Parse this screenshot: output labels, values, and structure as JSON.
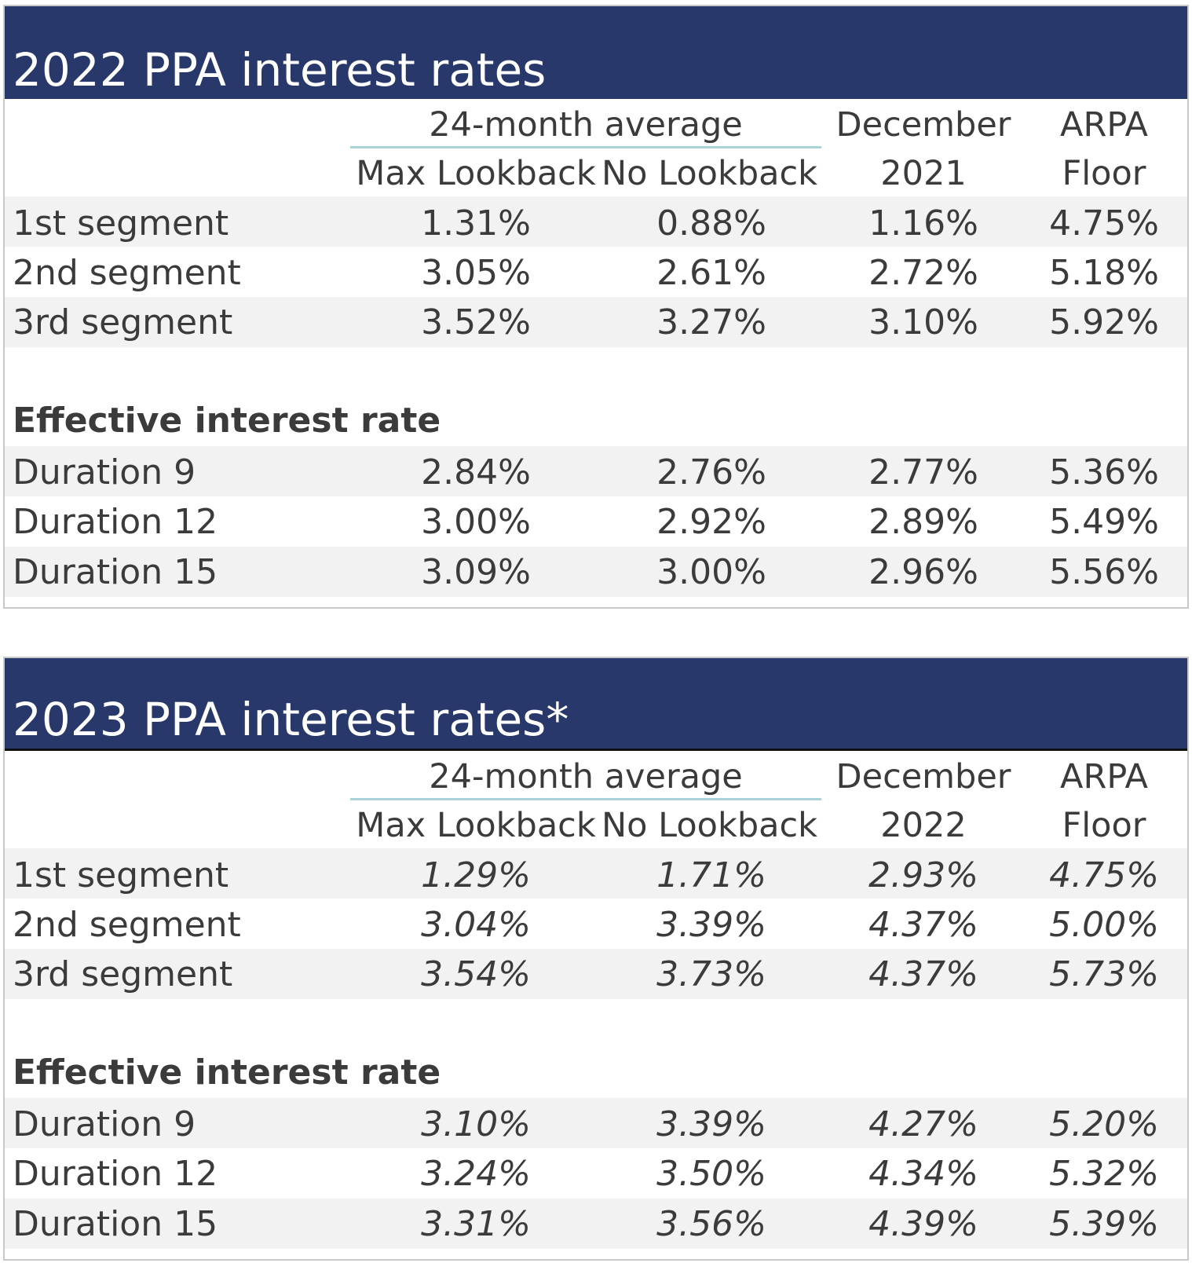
{
  "tables": [
    {
      "title": "2022 PPA interest rates",
      "group_header": "24-month average",
      "col_headers": {
        "max_lookback": "Max Lookback",
        "no_lookback": "No Lookback",
        "december_top": "December",
        "december_year": "2021",
        "arpa_top": "ARPA",
        "arpa_bottom": "Floor"
      },
      "segments": [
        {
          "label": "1st segment",
          "values": [
            "1.31%",
            "0.88%",
            "1.16%",
            "4.75%"
          ]
        },
        {
          "label": "2nd segment",
          "values": [
            "3.05%",
            "2.61%",
            "2.72%",
            "5.18%"
          ]
        },
        {
          "label": "3rd segment",
          "values": [
            "3.52%",
            "3.27%",
            "3.10%",
            "5.92%"
          ]
        }
      ],
      "effective_label": "Effective interest rate",
      "durations": [
        {
          "label": "Duration 9",
          "values": [
            "2.84%",
            "2.76%",
            "2.77%",
            "5.36%"
          ]
        },
        {
          "label": "Duration 12",
          "values": [
            "3.00%",
            "2.92%",
            "2.89%",
            "5.49%"
          ]
        },
        {
          "label": "Duration 15",
          "values": [
            "3.09%",
            "3.00%",
            "2.96%",
            "5.56%"
          ]
        }
      ]
    },
    {
      "title": "2023 PPA interest rates*",
      "group_header": "24-month average",
      "col_headers": {
        "max_lookback": "Max Lookback",
        "no_lookback": "No Lookback",
        "december_top": "December",
        "december_year": "2022",
        "arpa_top": "ARPA",
        "arpa_bottom": "Floor"
      },
      "segments": [
        {
          "label": "1st segment",
          "values": [
            "1.29%",
            "1.71%",
            "2.93%",
            "4.75%"
          ]
        },
        {
          "label": "2nd segment",
          "values": [
            "3.04%",
            "3.39%",
            "4.37%",
            "5.00%"
          ]
        },
        {
          "label": "3rd segment",
          "values": [
            "3.54%",
            "3.73%",
            "4.37%",
            "5.73%"
          ]
        }
      ],
      "effective_label": "Effective interest rate",
      "durations": [
        {
          "label": "Duration 9",
          "values": [
            "3.10%",
            "3.39%",
            "4.27%",
            "5.20%"
          ]
        },
        {
          "label": "Duration 12",
          "values": [
            "3.24%",
            "3.50%",
            "4.34%",
            "5.32%"
          ]
        },
        {
          "label": "Duration 15",
          "values": [
            "3.31%",
            "3.56%",
            "4.39%",
            "5.39%"
          ]
        }
      ]
    }
  ],
  "colors": {
    "header_bg": "#29386a",
    "band_bg": "#f2f2f2",
    "underline": "#a9d2d9"
  }
}
